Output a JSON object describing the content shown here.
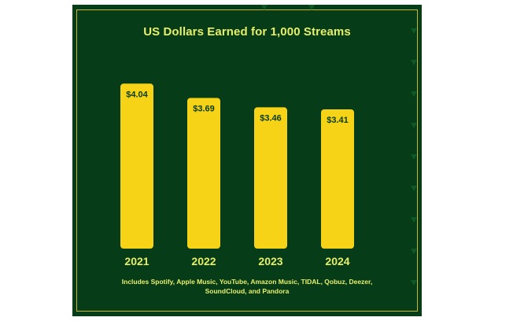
{
  "chart_data": {
    "type": "bar",
    "title": "US Dollars Earned for 1,000 Streams",
    "categories": [
      "2021",
      "2022",
      "2023",
      "2024"
    ],
    "values": [
      4.04,
      3.69,
      3.46,
      3.41
    ],
    "value_labels": [
      "$4.04",
      "$3.69",
      "$3.46",
      "$3.41"
    ],
    "xlabel": "",
    "ylabel": "",
    "ylim": [
      0,
      4.2
    ],
    "grid": false,
    "legend": "none",
    "colors": {
      "background": "#073c18",
      "bar": "#f6d316",
      "text": "#e7ef6a",
      "value_label": "#073c18",
      "frame": "#c9b733"
    }
  },
  "footnote": "Includes Spotify, Apple Music, YouTube, Amazon Music, TIDAL, Qobuz, Deezer, SoundCloud, and Pandora"
}
